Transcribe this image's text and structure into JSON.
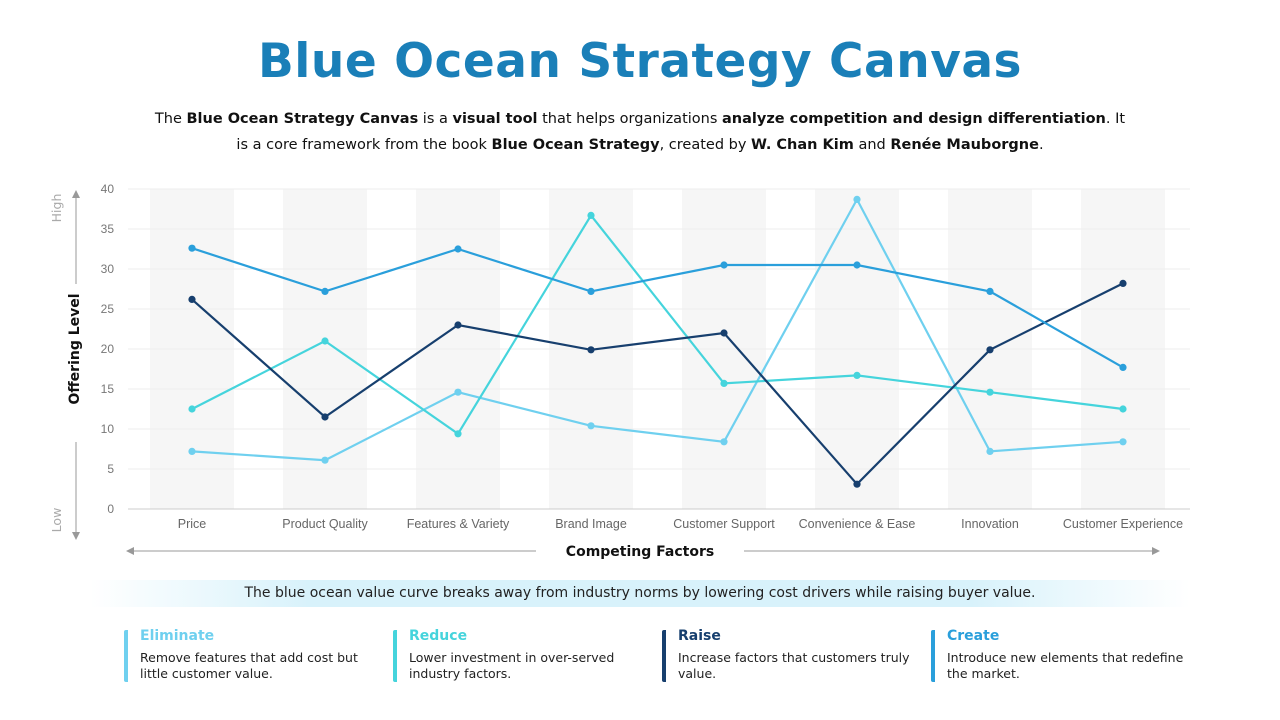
{
  "title": "Blue Ocean Strategy Canvas",
  "intro": {
    "p1": "The ",
    "b1": "Blue Ocean Strategy Canvas",
    "p2": " is a ",
    "b2": "visual tool",
    "p3": " that helps organizations ",
    "b3": "analyze competition and design differentiation",
    "p4": ". It is a core framework from the book ",
    "b4": "Blue Ocean Strategy",
    "p5": ", created by ",
    "b5": "W. Chan Kim",
    "p6": " and ",
    "b6": "Renée Mauborgne",
    "p7": "."
  },
  "chart_data": {
    "type": "line",
    "xlabel": "Competing Factors",
    "ylabel": "Offering Level",
    "y_high_label": "High",
    "y_low_label": "Low",
    "ylim": [
      0,
      40
    ],
    "yticks": [
      0,
      5,
      10,
      15,
      20,
      25,
      30,
      35,
      40
    ],
    "grid": true,
    "categories": [
      "Price",
      "Product Quality",
      "Features & Variety",
      "Brand Image",
      "Customer Support",
      "Convenience & Ease",
      "Innovation",
      "Customer Experience"
    ],
    "series": [
      {
        "color": "#6fd0ef",
        "values": [
          7.2,
          6.1,
          14.6,
          10.4,
          8.4,
          38.7,
          7.2,
          8.4
        ]
      },
      {
        "color": "#45d4dc",
        "values": [
          12.5,
          21,
          9.4,
          36.7,
          15.7,
          16.7,
          14.6,
          12.5
        ]
      },
      {
        "color": "#173f6e",
        "values": [
          26.2,
          11.5,
          23,
          19.9,
          22,
          3.1,
          19.9,
          28.2
        ]
      },
      {
        "color": "#2a9fdb",
        "values": [
          32.6,
          27.2,
          32.5,
          27.2,
          30.5,
          30.5,
          27.2,
          17.7
        ]
      }
    ]
  },
  "banner": "The blue ocean value curve breaks away from industry norms by lowering cost drivers while raising buyer value.",
  "cards": [
    {
      "title": "Eliminate",
      "desc": "Remove features that add cost but little customer value.",
      "color": "#6fd0ef"
    },
    {
      "title": "Reduce",
      "desc": "Lower investment in over-served industry factors.",
      "color": "#45d4dc"
    },
    {
      "title": "Raise",
      "desc": "Increase factors that customers truly value.",
      "color": "#173f6e"
    },
    {
      "title": "Create",
      "desc": "Introduce new elements that redefine the market.",
      "color": "#2a9fdb"
    }
  ]
}
